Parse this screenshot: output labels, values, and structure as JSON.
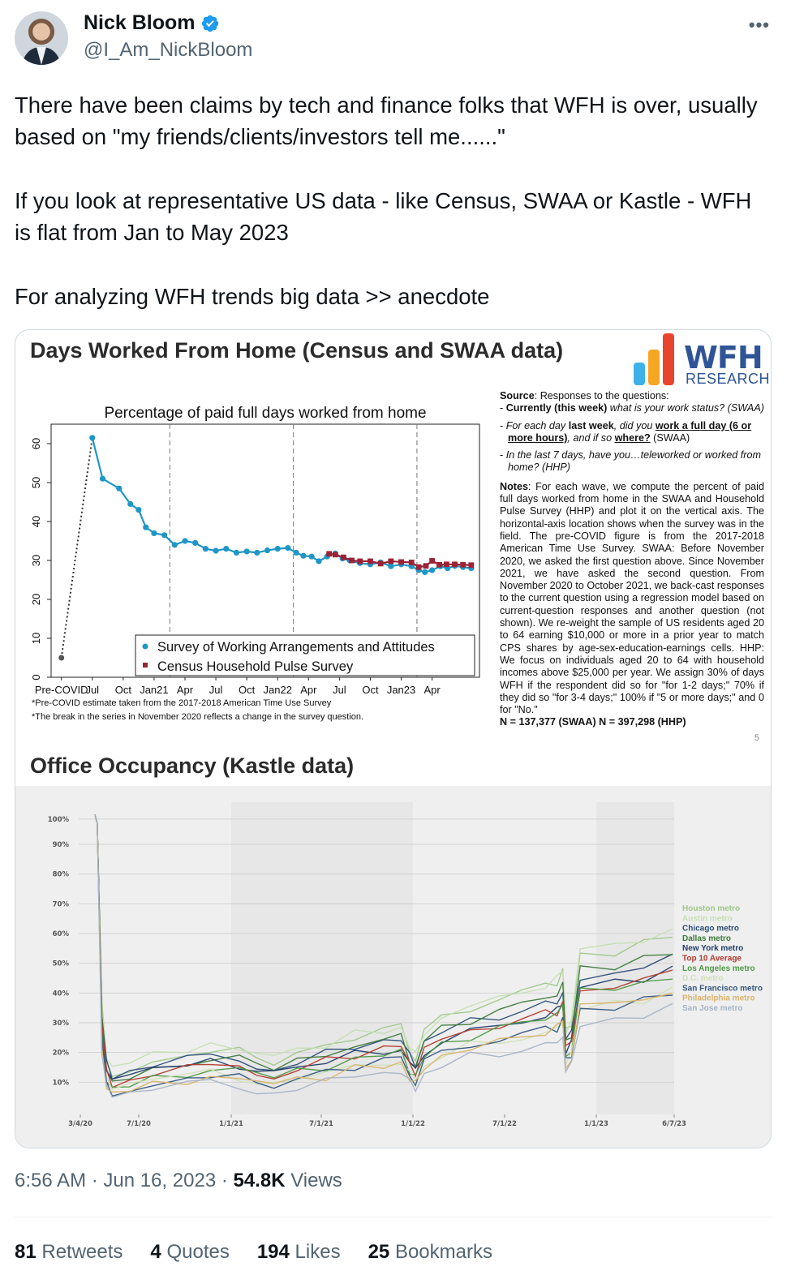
{
  "author": {
    "name": "Nick Bloom",
    "handle": "@I_Am_NickBloom",
    "verified": true
  },
  "tweet_paragraphs": [
    "There have been claims by tech and finance folks that WFH is over, usually based on \"my friends/clients/investors tell me......\"",
    "If you look at representative US data - like Census, SWAA or Kastle - WFH is flat from Jan to May 2023",
    "For analyzing WFH trends big data >> anecdote"
  ],
  "image": {
    "title1": "Days Worked From Home (Census and SWAA data)",
    "title2": "Office Occupancy (Kastle data)",
    "logo_main": "WFH",
    "logo_sub": "RESEARCH",
    "notes": {
      "source_label": "Source",
      "source_text": ": Responses to the questions:",
      "q1_bold": "Currently (this week)",
      "q1_rest": " what is your work status? (SWAA)",
      "q2_a": "For each day ",
      "q2_b": "last week",
      "q2_c": ", did you ",
      "q2_d": "work a full day (6 or more hours)",
      "q2_e": ", and if so ",
      "q2_f": "where?",
      "q2_g": " (SWAA)",
      "q3": "In the last 7 days, have you…teleworked or worked from home? (HHP)",
      "notes_label": "Notes",
      "notes_text": ": For each wave, we compute the percent of paid full days worked from home in the SWAA and Household Pulse Survey (HHP) and plot it on the vertical axis. The horizontal-axis location shows when the survey was in the field. The pre-COVID figure is from the 2017-2018 American Time Use Survey. SWAA: Before November 2020, we asked the first question above. Since November 2021, we have asked the second question. From November 2020 to October 2021, we back-cast responses to the current question using a regression model based on current-question responses and another question (not shown). We re-weight the sample of US residents aged 20 to 64 earning $10,000 or more in a prior year to match CPS shares by age-sex-education-earnings cells. HHP: We focus on individuals aged 20 to 64 with household incomes above $25,000 per year. We assign 30% of days WFH if the respondent did so for \"for 1-2 days;\" 70% if they did so \"for 3-4 days;\" 100% if \"5 or more days;\" and 0 for \"No.\"",
      "n_line": "N = 137,377 (SWAA) N = 397,298 (HHP)",
      "page_num": "5"
    },
    "footnotes": [
      "*Pre-COVID estimate taken from the 2017-2018 American Time Use Survey",
      "*The break in the series in November 2020 reflects a change in the survey question."
    ]
  },
  "meta": {
    "time": "6:56 AM · Jun 16, 2023 · ",
    "views_count": "54.8K",
    "views_label": " Views"
  },
  "stats": [
    {
      "count": "81",
      "label": " Retweets"
    },
    {
      "count": "4",
      "label": " Quotes"
    },
    {
      "count": "194",
      "label": " Likes"
    },
    {
      "count": "25",
      "label": " Bookmarks"
    }
  ],
  "chart_data": [
    {
      "type": "line",
      "title": "Percentage of paid full days worked from home",
      "ylim": [
        0,
        65
      ],
      "yticks": [
        0,
        10,
        20,
        30,
        40,
        50,
        60
      ],
      "x_ticks": [
        "Pre-COVID",
        "Jul",
        "Oct",
        "Jan21",
        "Apr",
        "Jul",
        "Oct",
        "Jan22",
        "Apr",
        "Jul",
        "Oct",
        "Jan23",
        "Apr"
      ],
      "x_tick_pos": [
        0,
        4,
        7,
        10,
        13,
        16,
        19,
        22,
        25,
        28,
        31,
        34,
        37
      ],
      "legend_position": "bottom-right",
      "series": [
        {
          "name": "Survey of Working Arrangements and Attitudes",
          "color": "#1f97c6",
          "points": [
            [
              -1,
              5
            ],
            [
              2,
              61.5
            ],
            [
              3,
              51
            ],
            [
              4.6,
              48.5
            ],
            [
              5.7,
              44.5
            ],
            [
              6.5,
              43
            ],
            [
              7.2,
              38.5
            ],
            [
              8,
              37
            ],
            [
              9,
              36.5
            ],
            [
              10,
              34
            ],
            [
              11,
              35
            ],
            [
              12,
              34.5
            ],
            [
              13,
              33
            ],
            [
              14,
              32.5
            ],
            [
              15,
              33
            ],
            [
              16,
              32
            ],
            [
              17,
              32.3
            ],
            [
              18,
              32
            ],
            [
              19,
              32.6
            ],
            [
              20,
              33
            ],
            [
              21,
              33.2
            ],
            [
              21.8,
              32
            ],
            [
              22.5,
              31.2
            ],
            [
              23.3,
              31
            ],
            [
              24,
              29.8
            ],
            [
              24.8,
              31
            ],
            [
              25.6,
              31.8
            ],
            [
              26.3,
              30.5
            ],
            [
              27,
              30
            ],
            [
              28,
              29.3
            ],
            [
              29,
              29
            ],
            [
              30,
              29.5
            ],
            [
              31,
              28.5
            ],
            [
              32,
              29
            ],
            [
              33,
              28.5
            ],
            [
              33.7,
              27.5
            ],
            [
              34.3,
              27
            ],
            [
              35,
              27.5
            ],
            [
              35.8,
              28.5
            ],
            [
              36.5,
              28
            ],
            [
              37.2,
              28.6
            ],
            [
              38,
              28.3
            ],
            [
              38.8,
              28
            ]
          ]
        },
        {
          "name": "Census Household Pulse Survey",
          "color": "#9b2335",
          "points": [
            [
              25,
              31.7
            ],
            [
              25.6,
              31.5
            ],
            [
              26.4,
              30.8
            ],
            [
              27.2,
              30
            ],
            [
              28,
              29.8
            ],
            [
              29,
              29.8
            ],
            [
              30,
              29.2
            ],
            [
              31,
              29.8
            ],
            [
              32,
              29.6
            ],
            [
              33,
              29.5
            ],
            [
              33.7,
              28.3
            ],
            [
              34.4,
              28.6
            ],
            [
              35,
              29.9
            ],
            [
              35.7,
              28.9
            ],
            [
              36.4,
              29
            ],
            [
              37.2,
              29
            ],
            [
              38,
              28.9
            ],
            [
              38.8,
              28.8
            ]
          ]
        }
      ]
    },
    {
      "type": "line",
      "title": "",
      "ylim": [
        0,
        100
      ],
      "yticks": [
        "10%",
        "20%",
        "30%",
        "40%",
        "50%",
        "60%",
        "70%",
        "80%",
        "90%",
        "100%"
      ],
      "x_ticks": [
        "3/4/20",
        "7/1/20",
        "1/1/21",
        "7/1/21",
        "1/1/22",
        "7/1/22",
        "1/1/23",
        "6/7/23"
      ],
      "legend_position": "right",
      "series": [
        {
          "name": "Houston metro",
          "color": "#9fc78a",
          "end": 60
        },
        {
          "name": "Austin metro",
          "color": "#c5dfb2",
          "end": 62
        },
        {
          "name": "Chicago metro",
          "color": "#2c4f78",
          "end": 53
        },
        {
          "name": "Dallas metro",
          "color": "#3d7a3a",
          "end": 56
        },
        {
          "name": "New York metro",
          "color": "#1f3d6b",
          "end": 50
        },
        {
          "name": "Top 10 Average",
          "color": "#b53a2e",
          "end": 50
        },
        {
          "name": "Los Angeles metro",
          "color": "#4e9a45",
          "end": 49
        },
        {
          "name": "D.C. metro",
          "color": "#cfe0b8",
          "end": 44
        },
        {
          "name": "San Francisco metro",
          "color": "#33577f",
          "end": 44
        },
        {
          "name": "Philadelphia metro",
          "color": "#d8b46a",
          "end": 45
        },
        {
          "name": "San Jose metro",
          "color": "#a8b3c6",
          "end": 40
        }
      ]
    }
  ]
}
